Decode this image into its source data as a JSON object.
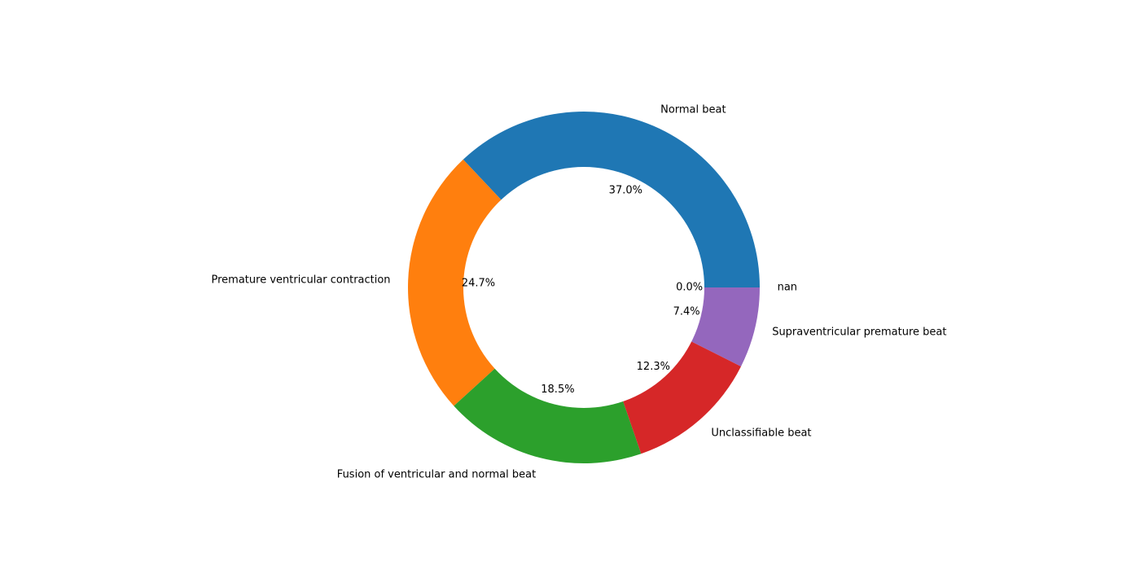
{
  "chart_data": {
    "type": "pie",
    "donut": true,
    "title": "",
    "categories": [
      "Normal beat",
      "Premature ventricular contraction",
      "Fusion of ventricular and normal beat",
      "Unclassifiable beat",
      "Supraventricular premature beat",
      "nan"
    ],
    "values": [
      37.0,
      24.7,
      18.5,
      12.3,
      7.4,
      0.0
    ],
    "percent_labels": [
      "37.0%",
      "24.7%",
      "18.5%",
      "12.3%",
      "7.4%",
      "0.0%"
    ],
    "colors": [
      "#1f77b4",
      "#ff7f0e",
      "#2ca02c",
      "#d62728",
      "#9467bd",
      "#8c564b"
    ],
    "start_angle_deg": 0,
    "direction": "counterclockwise",
    "legend": "none"
  }
}
